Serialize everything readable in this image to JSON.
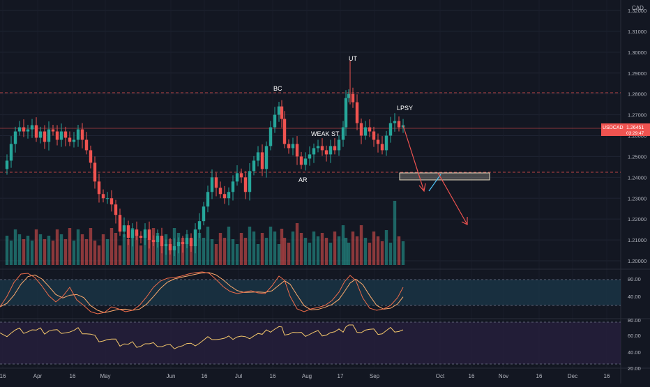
{
  "symbol": "USDCAD",
  "currency": "CAD",
  "price_label": "1.26451",
  "countdown": "03:29:47",
  "annotations": {
    "bc": "BC",
    "ut": "UT",
    "lpsy": "LPSY",
    "weak_st": "WEAK ST",
    "ar": "AR"
  },
  "price_axis_labels": [
    "1.32000",
    "1.31000",
    "1.30000",
    "1.29000",
    "1.28000",
    "1.27000",
    "1.26000",
    "1.25000",
    "1.24000",
    "1.23000",
    "1.22000",
    "1.21000",
    "1.20000"
  ],
  "stoch_axis_labels": [
    "80.00",
    "40.00"
  ],
  "rsi_axis_labels": [
    "80.00",
    "60.00",
    "40.00",
    "20.00"
  ],
  "time_axis_labels": [
    "16",
    "Apr",
    "16",
    "May",
    "Jun",
    "16",
    "Jul",
    "16",
    "Aug",
    "17",
    "Sep",
    "Oct",
    "16",
    "Nov",
    "16",
    "Dec",
    "16"
  ],
  "colors": {
    "background": "#131722",
    "up": "#26a69a",
    "down": "#ef5350",
    "resistance_line": "#ef5350",
    "stoch_k": "#ef6c4a",
    "stoch_d": "#ffab6e",
    "rsi": "#f5c86b",
    "stoch_band": "#1b3a4b",
    "rsi_band": "#2a2140",
    "target_zone": "#e7dcc3",
    "arrow": "#ef5350",
    "arrow_up": "#4fc3f7"
  }
}
